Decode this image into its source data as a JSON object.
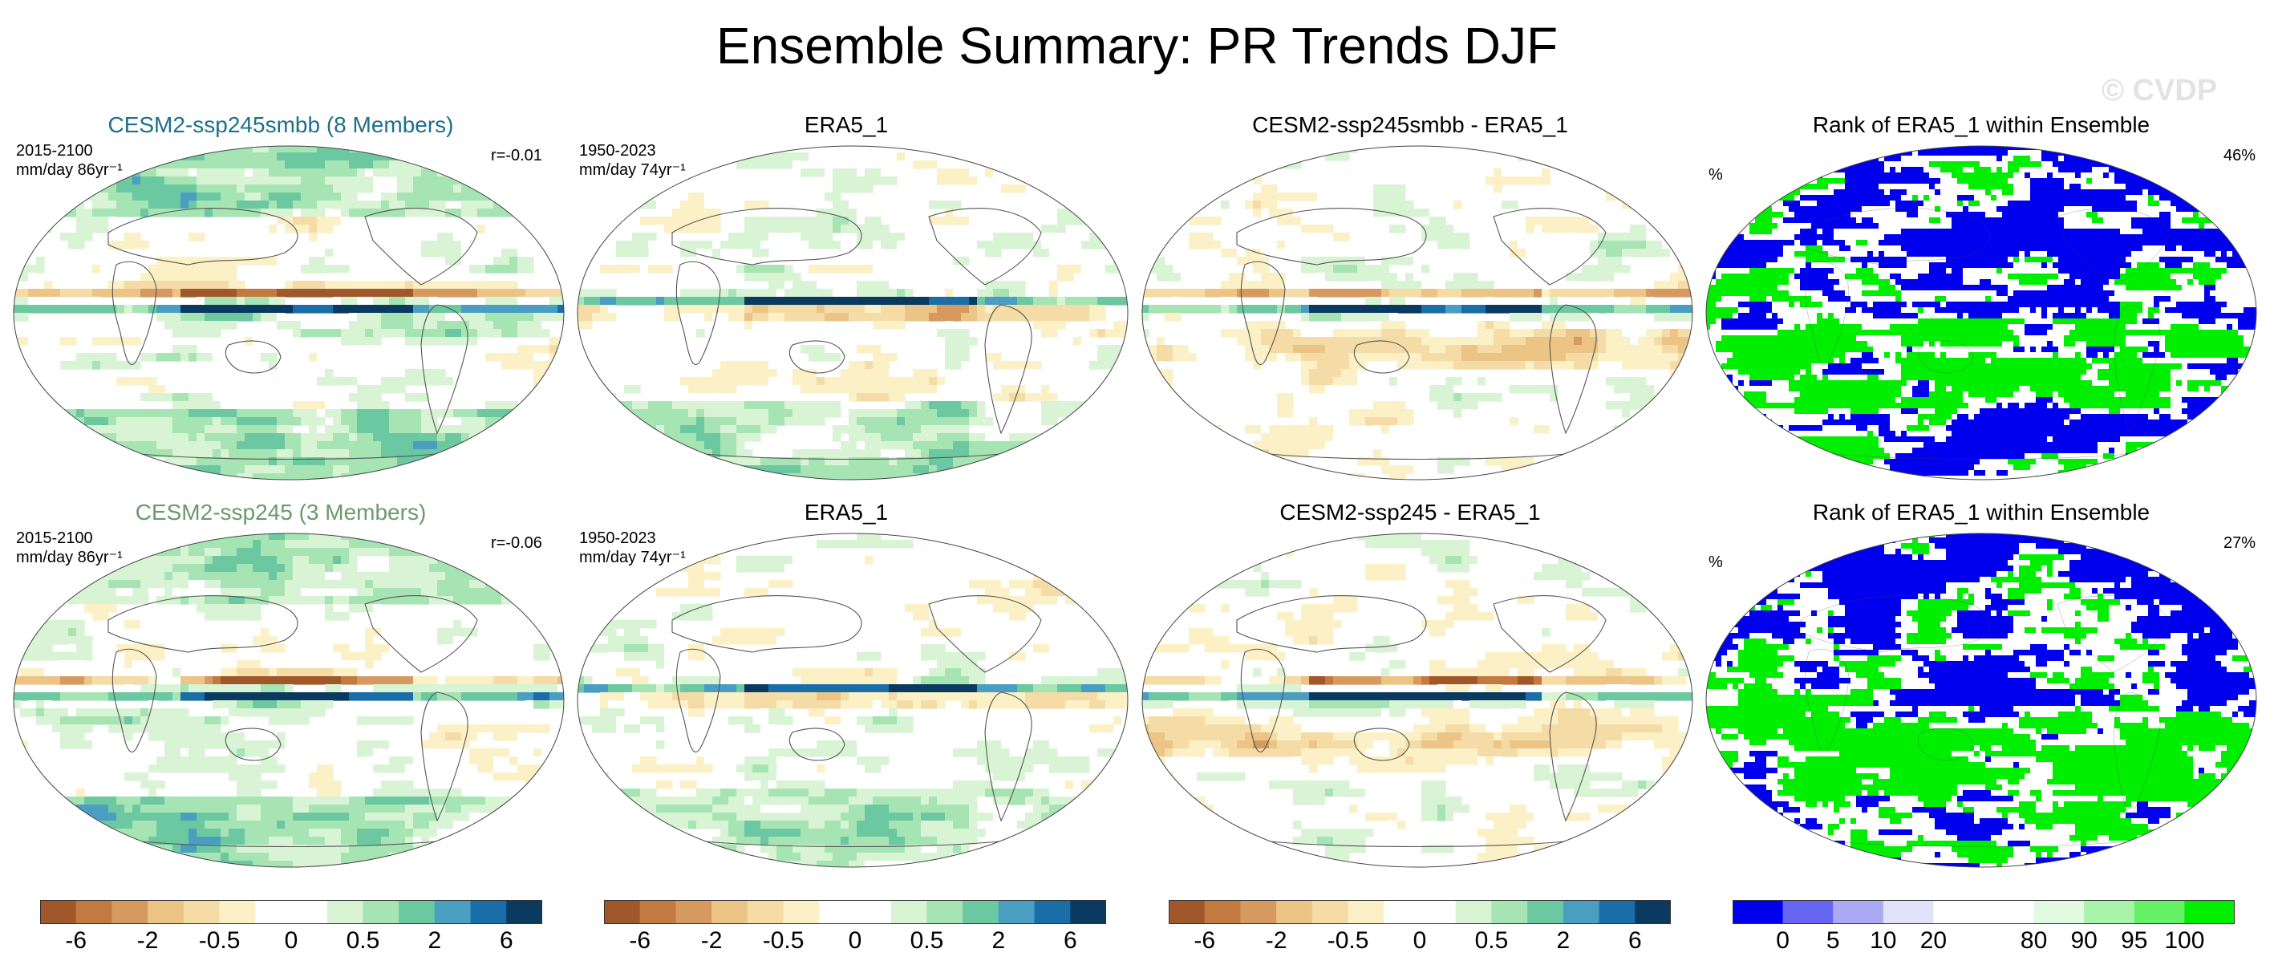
{
  "title": "Ensemble Summary: PR Trends DJF",
  "watermark": "© CVDP",
  "rows": [
    {
      "model_title": "CESM2-ssp245smbb (8 Members)",
      "model_title_color": "#1f6f8b",
      "model_period": "2015-2100",
      "model_units": "mm/day 86yr⁻¹",
      "pattern_corr": "r=-0.01",
      "obs_title": "ERA5_1",
      "obs_period": "1950-2023",
      "obs_units": "mm/day 74yr⁻¹",
      "diff_title": "CESM2-ssp245smbb - ERA5_1",
      "rank_title": "Rank of ERA5_1 within Ensemble",
      "rank_unit": "%",
      "rank_pct": "46%"
    },
    {
      "model_title": "CESM2-ssp245 (3 Members)",
      "model_title_color": "#6a9a6a",
      "model_period": "2015-2100",
      "model_units": "mm/day 86yr⁻¹",
      "pattern_corr": "r=-0.06",
      "obs_title": "ERA5_1",
      "obs_period": "1950-2023",
      "obs_units": "mm/day 74yr⁻¹",
      "diff_title": "CESM2-ssp245 - ERA5_1",
      "rank_title": "Rank of ERA5_1 within Ensemble",
      "rank_unit": "%",
      "rank_pct": "27%"
    }
  ],
  "chart_data": [
    {
      "type": "heatmap",
      "projection": "Robinson (global)",
      "variable": "PR trend (DJF)",
      "colorbar": {
        "colors": [
          "#a0582a",
          "#c27a40",
          "#d69a60",
          "#ecc486",
          "#f5dca6",
          "#fbf0c6",
          "#ffffff",
          "#ffffff",
          "#d8f4d4",
          "#a6e4b4",
          "#6cc8a0",
          "#4a9ec2",
          "#1a6ea8",
          "#0a3a60"
        ],
        "tick_labels": [
          "-6",
          "-2",
          "-0.5",
          "0",
          "0.5",
          "2",
          "6"
        ]
      }
    },
    {
      "type": "heatmap",
      "variable": "Rank of ERA5_1 within Ensemble (%)",
      "colorbar": {
        "colors": [
          "#0000ee",
          "#6666f2",
          "#aaaaf4",
          "#e2e2fa",
          "#ffffff",
          "#ffffff",
          "#e2fae2",
          "#aaf4aa",
          "#66f266",
          "#00ee00"
        ],
        "tick_labels": [
          "0",
          "5",
          "10",
          "20",
          "80",
          "90",
          "95",
          "100"
        ]
      }
    }
  ]
}
